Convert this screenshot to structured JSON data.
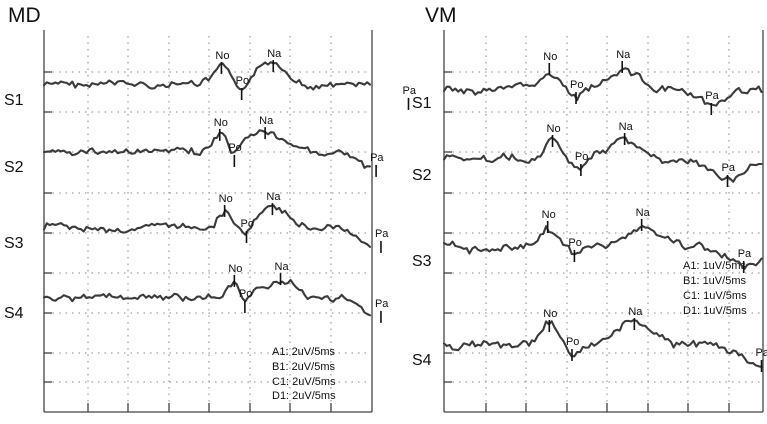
{
  "chart_data": [
    {
      "type": "line",
      "title": "MD",
      "x_unit": "ms",
      "time_per_div_ms": 5,
      "series": [
        {
          "name": "S1",
          "scale": "A1: 2uV/5ms",
          "peaks": [
            {
              "label": "No",
              "t": 21.9
            },
            {
              "label": "Po",
              "t": 24.4
            },
            {
              "label": "Na",
              "t": 28.3
            },
            {
              "label": "Pa",
              "t": 45.0
            }
          ]
        },
        {
          "name": "S2",
          "scale": "B1: 2uV/5ms",
          "peaks": [
            {
              "label": "No",
              "t": 21.7
            },
            {
              "label": "Po",
              "t": 23.5
            },
            {
              "label": "Na",
              "t": 27.3
            },
            {
              "label": "Pa",
              "t": 41.0
            }
          ]
        },
        {
          "name": "S3",
          "scale": "C1: 2uV/5ms",
          "peaks": [
            {
              "label": "No",
              "t": 22.3
            },
            {
              "label": "Po",
              "t": 25.0
            },
            {
              "label": "Na",
              "t": 28.2
            },
            {
              "label": "Pa",
              "t": 41.6
            }
          ]
        },
        {
          "name": "S4",
          "scale": "D1: 2uV/5ms",
          "peaks": [
            {
              "label": "No",
              "t": 23.5
            },
            {
              "label": "Po",
              "t": 24.8
            },
            {
              "label": "Na",
              "t": 29.2
            },
            {
              "label": "Pa",
              "t": 41.6
            }
          ]
        }
      ]
    },
    {
      "type": "line",
      "title": "VM",
      "x_unit": "ms",
      "time_per_div_ms": 5,
      "series": [
        {
          "name": "S1",
          "scale": "A1: 1uV/5ms",
          "peaks": [
            {
              "label": "No",
              "t": 13.0
            },
            {
              "label": "Po",
              "t": 16.3
            },
            {
              "label": "Na",
              "t": 22.0
            },
            {
              "label": "Pa",
              "t": 33.0
            }
          ]
        },
        {
          "name": "S2",
          "scale": "B1: 1uV/5ms",
          "peaks": [
            {
              "label": "No",
              "t": 13.4
            },
            {
              "label": "Po",
              "t": 16.9
            },
            {
              "label": "Na",
              "t": 22.3
            },
            {
              "label": "Pa",
              "t": 35.0
            }
          ]
        },
        {
          "name": "S3",
          "scale": "C1: 1uV/5ms",
          "peaks": [
            {
              "label": "No",
              "t": 12.8
            },
            {
              "label": "Po",
              "t": 16.1
            },
            {
              "label": "Na",
              "t": 24.4
            },
            {
              "label": "Pa",
              "t": 37.0
            }
          ]
        },
        {
          "name": "S4",
          "scale": "D1: 1uV/5ms",
          "peaks": [
            {
              "label": "No",
              "t": 13.0
            },
            {
              "label": "Po",
              "t": 15.8
            },
            {
              "label": "Na",
              "t": 23.5
            },
            {
              "label": "Pa",
              "t": 39.2
            }
          ]
        }
      ]
    }
  ]
}
